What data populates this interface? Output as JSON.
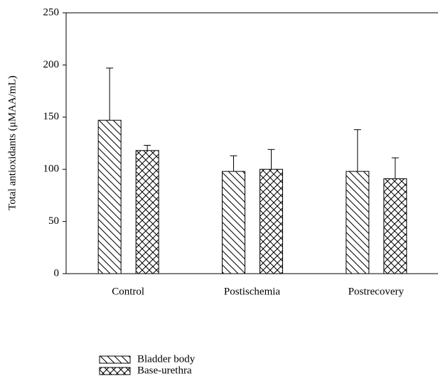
{
  "chart_data": {
    "type": "bar",
    "y_label": "Total antioxidants (μMAA/mL)",
    "categories": [
      "Control",
      "Postischemia",
      "Postrecovery"
    ],
    "series": [
      {
        "name": "Bladder body",
        "color": "#000000",
        "hatch": "diagonal",
        "values": [
          147,
          98,
          98
        ],
        "errors": [
          50,
          15,
          40
        ]
      },
      {
        "name": "Base-urethra",
        "color": "#000000",
        "hatch": "crosshatch",
        "values": [
          118,
          100,
          91
        ],
        "errors": [
          5,
          19,
          20
        ]
      }
    ],
    "ylim": [
      0,
      250
    ],
    "yticks": [
      0,
      50,
      100,
      150,
      200,
      250
    ],
    "grid": false,
    "legend": "bottom-left"
  }
}
